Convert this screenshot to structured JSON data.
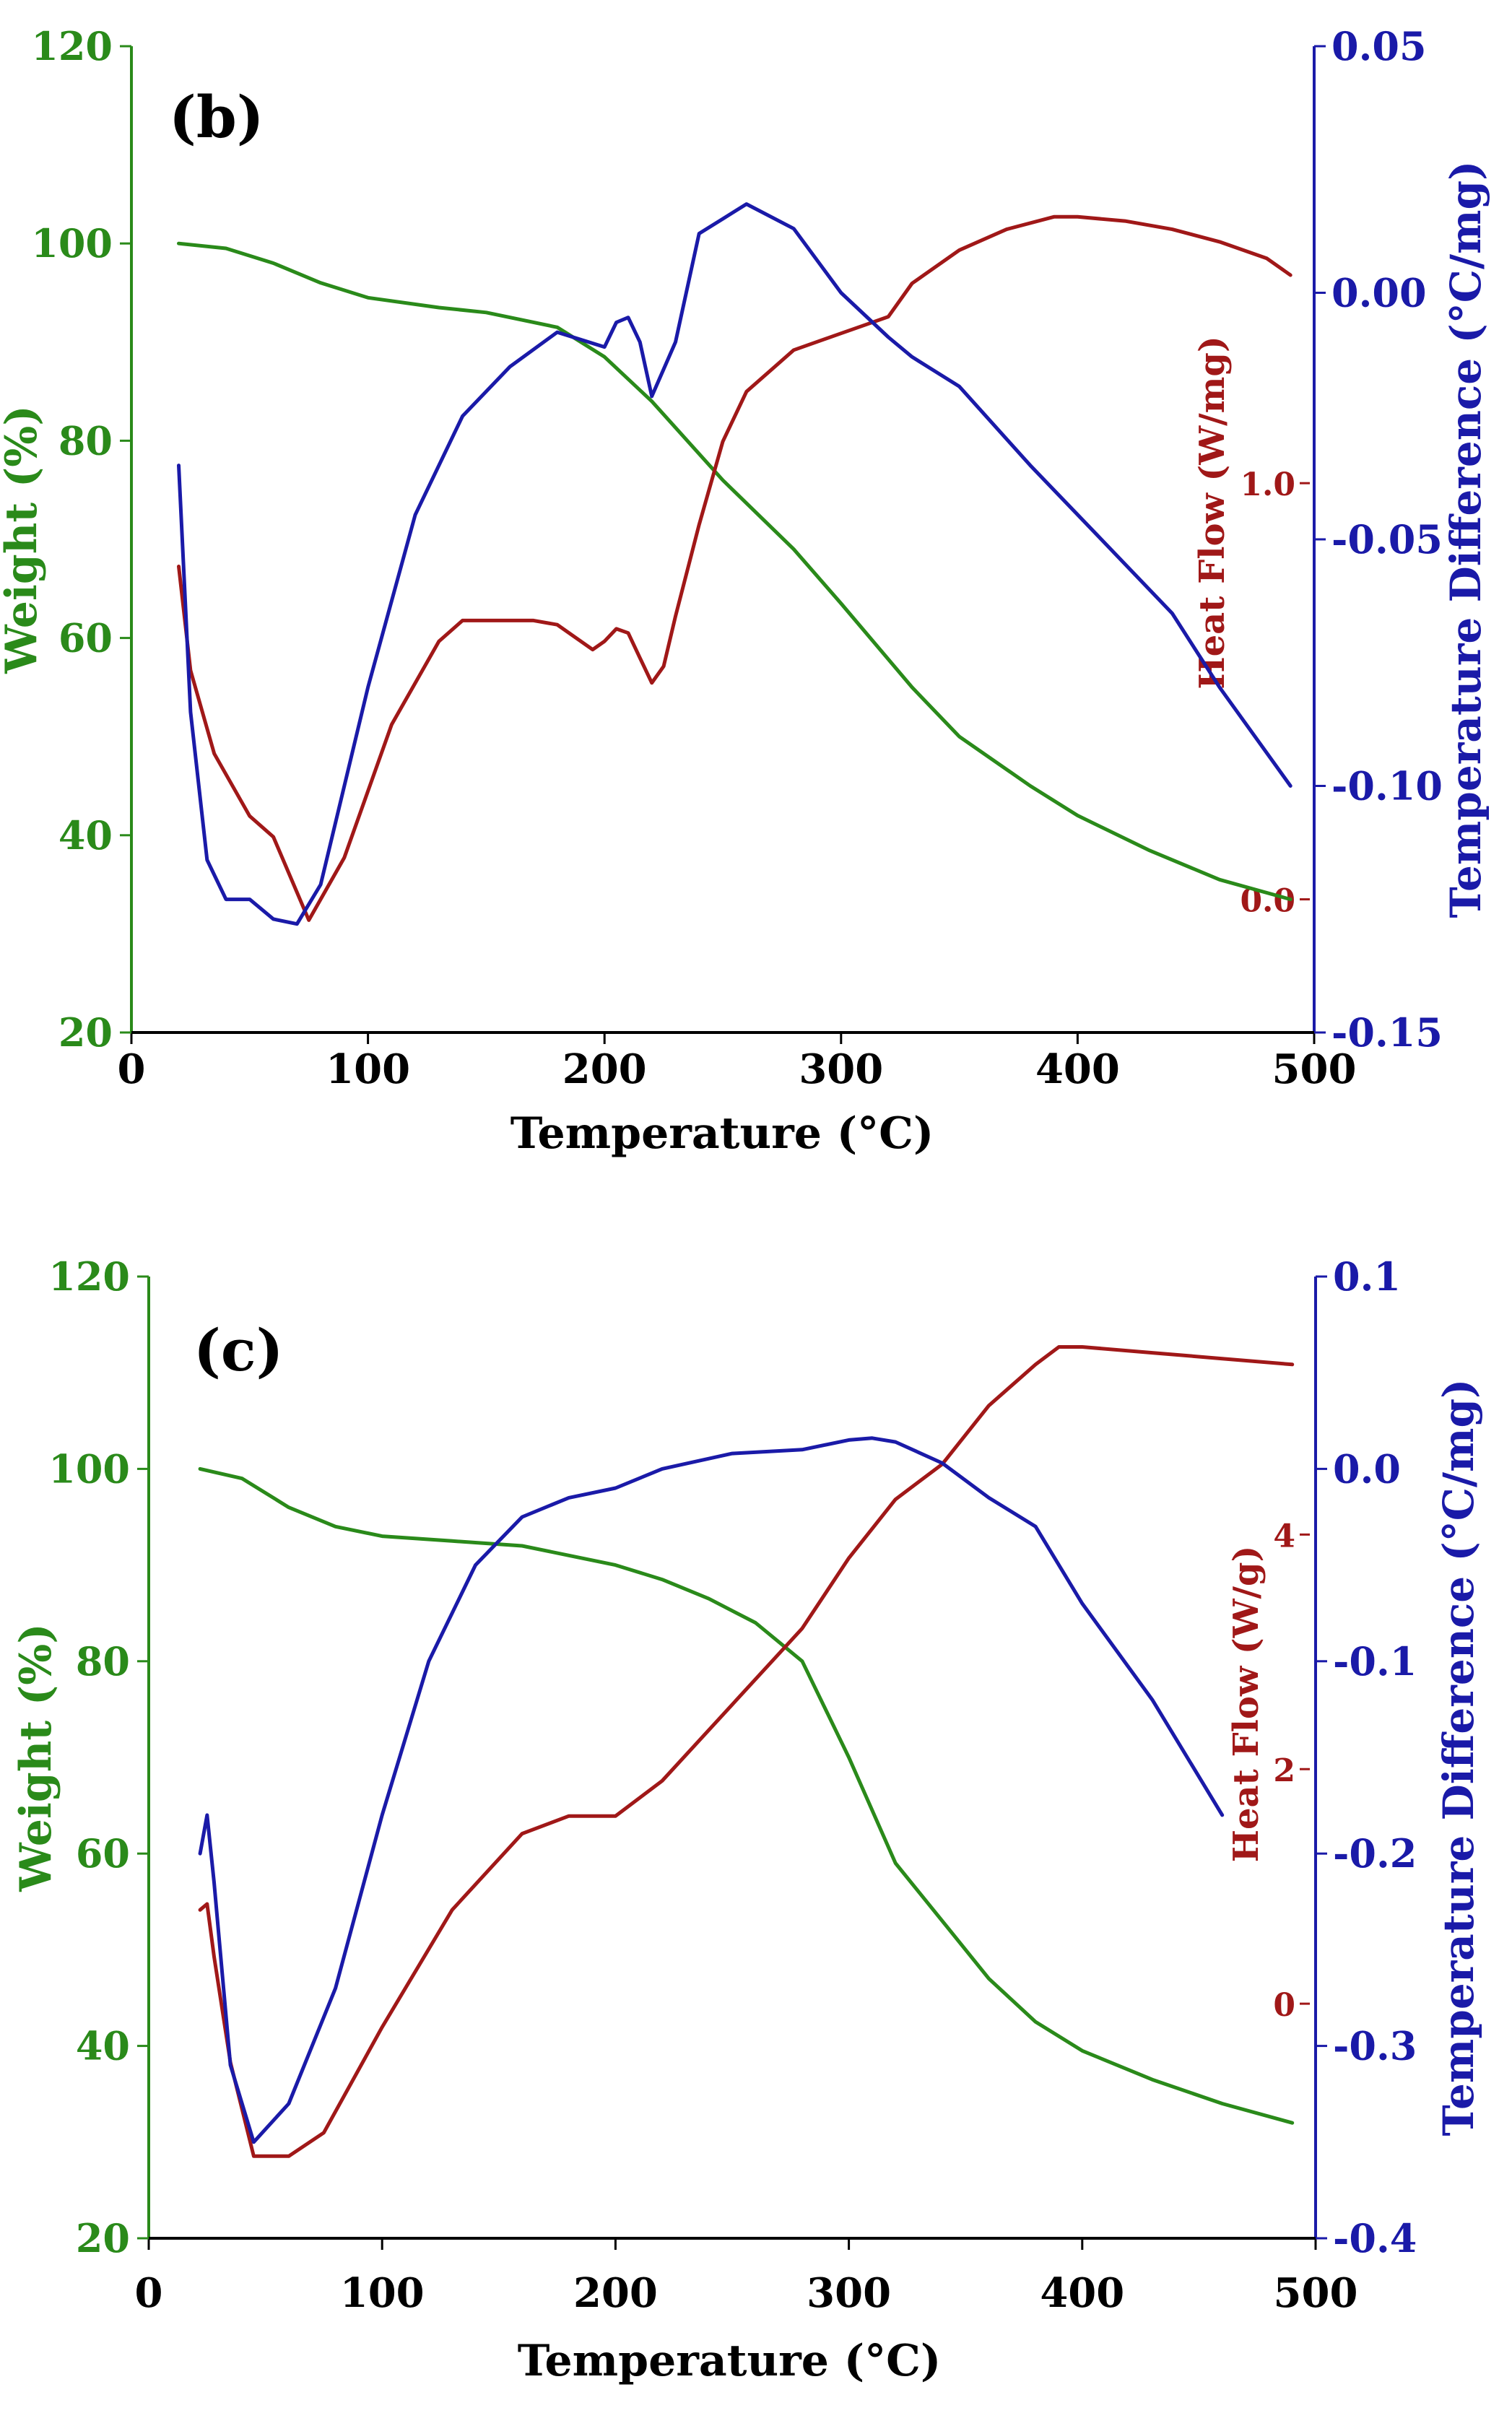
{
  "colors": {
    "weight": "#2a8a1a",
    "heat": "#a01818",
    "temp": "#1a1aa8",
    "axis": "#000000"
  },
  "chart_data": [
    {
      "type": "line",
      "panel_label": "(b)",
      "xlabel": "Temperature (°C)",
      "xlim": [
        0,
        500
      ],
      "x_ticks": [
        "0",
        "100",
        "200",
        "300",
        "400",
        "500"
      ],
      "left_axis": {
        "label": "Weight (%)",
        "lim": [
          20,
          120
        ],
        "ticks": [
          "20",
          "40",
          "60",
          "80",
          "100",
          "120"
        ]
      },
      "right_axis": {
        "label": "Temperature Difference (°C/mg)",
        "lim": [
          -0.15,
          0.05
        ],
        "ticks": [
          "-0.15",
          "-0.10",
          "-0.05",
          "0.00",
          "0.05"
        ]
      },
      "mid_axis": {
        "label": "Heat Flow (W/mg)",
        "lim": [
          -0.32,
          2.05
        ],
        "ticks": [
          "0.0",
          "1.0"
        ]
      },
      "series": [
        {
          "name": "Weight",
          "axis": "left",
          "color_key": "weight",
          "x": [
            20,
            40,
            60,
            80,
            100,
            130,
            150,
            180,
            200,
            220,
            250,
            280,
            300,
            330,
            350,
            380,
            400,
            430,
            460,
            490
          ],
          "y": [
            100,
            99.5,
            98,
            96,
            94.5,
            93.5,
            93,
            91.5,
            88.5,
            84,
            76,
            69,
            63.5,
            55,
            50,
            45,
            42,
            38.5,
            35.5,
            33.5
          ]
        },
        {
          "name": "Heat Flow",
          "axis": "mid",
          "color_key": "heat",
          "x": [
            20,
            25,
            35,
            50,
            60,
            75,
            90,
            110,
            130,
            140,
            150,
            170,
            180,
            195,
            200,
            205,
            210,
            215,
            220,
            225,
            230,
            240,
            250,
            260,
            280,
            300,
            310,
            320,
            330,
            350,
            370,
            390,
            400,
            420,
            440,
            460,
            480,
            490
          ],
          "y": [
            0.8,
            0.55,
            0.35,
            0.2,
            0.15,
            -0.05,
            0.1,
            0.42,
            0.62,
            0.67,
            0.67,
            0.67,
            0.66,
            0.6,
            0.62,
            0.65,
            0.64,
            0.58,
            0.52,
            0.56,
            0.68,
            0.9,
            1.1,
            1.22,
            1.32,
            1.36,
            1.38,
            1.4,
            1.48,
            1.56,
            1.61,
            1.64,
            1.64,
            1.63,
            1.61,
            1.58,
            1.54,
            1.5
          ]
        },
        {
          "name": "Temperature Difference",
          "axis": "right",
          "color_key": "temp",
          "x": [
            20,
            25,
            32,
            40,
            50,
            60,
            70,
            80,
            100,
            120,
            140,
            160,
            180,
            200,
            205,
            210,
            215,
            220,
            230,
            240,
            250,
            260,
            280,
            300,
            320,
            330,
            350,
            380,
            410,
            440,
            460,
            490
          ],
          "y": [
            -0.035,
            -0.085,
            -0.115,
            -0.123,
            -0.123,
            -0.127,
            -0.128,
            -0.12,
            -0.08,
            -0.045,
            -0.025,
            -0.015,
            -0.008,
            -0.011,
            -0.006,
            -0.005,
            -0.01,
            -0.021,
            -0.01,
            0.012,
            0.015,
            0.018,
            0.013,
            0.0,
            -0.009,
            -0.013,
            -0.019,
            -0.035,
            -0.05,
            -0.065,
            -0.08,
            -0.1
          ]
        }
      ]
    },
    {
      "type": "line",
      "panel_label": "(c)",
      "xlabel": "Temperature (°C)",
      "xlim": [
        0,
        500
      ],
      "x_ticks": [
        "0",
        "100",
        "200",
        "300",
        "400",
        "500"
      ],
      "left_axis": {
        "label": "Weight (%)",
        "lim": [
          20,
          120
        ],
        "ticks": [
          "20",
          "40",
          "60",
          "80",
          "100",
          "120"
        ]
      },
      "right_axis": {
        "label": "Temperature Difference (°C/mg)",
        "lim": [
          -0.4,
          0.1
        ],
        "ticks": [
          "-0.4",
          "-0.3",
          "-0.2",
          "-0.1",
          "0.0",
          "0.1"
        ]
      },
      "mid_axis": {
        "label": "Heat Flow (W/g)",
        "lim": [
          -2,
          6.2
        ],
        "ticks": [
          "0",
          "2",
          "4"
        ]
      },
      "series": [
        {
          "name": "Weight",
          "axis": "left",
          "color_key": "weight",
          "x": [
            22,
            40,
            60,
            80,
            100,
            130,
            160,
            180,
            200,
            220,
            240,
            260,
            280,
            300,
            320,
            340,
            360,
            380,
            400,
            430,
            460,
            490
          ],
          "y": [
            100,
            99,
            96,
            94,
            93,
            92.5,
            92,
            91,
            90,
            88.5,
            86.5,
            84,
            80,
            70,
            59,
            53,
            47,
            42.5,
            39.5,
            36.5,
            34,
            32
          ]
        },
        {
          "name": "Heat Flow",
          "axis": "mid",
          "color_key": "heat",
          "x": [
            22,
            25,
            28,
            35,
            45,
            60,
            75,
            100,
            130,
            160,
            180,
            200,
            220,
            250,
            280,
            300,
            320,
            340,
            360,
            380,
            390,
            400,
            430,
            460,
            490
          ],
          "y": [
            0.8,
            0.85,
            0.4,
            -0.5,
            -1.3,
            -1.3,
            -1.1,
            -0.2,
            0.8,
            1.45,
            1.6,
            1.6,
            1.9,
            2.55,
            3.2,
            3.8,
            4.3,
            4.6,
            5.1,
            5.45,
            5.6,
            5.6,
            5.55,
            5.5,
            5.45
          ]
        },
        {
          "name": "Temperature Difference",
          "axis": "right",
          "color_key": "temp",
          "x": [
            22,
            25,
            28,
            35,
            45,
            60,
            80,
            100,
            120,
            140,
            160,
            180,
            200,
            220,
            250,
            280,
            300,
            310,
            320,
            340,
            360,
            380,
            400,
            430,
            460
          ],
          "y": [
            -0.2,
            -0.18,
            -0.215,
            -0.31,
            -0.35,
            -0.33,
            -0.27,
            -0.18,
            -0.1,
            -0.05,
            -0.025,
            -0.015,
            -0.01,
            0.0,
            0.008,
            0.01,
            0.015,
            0.016,
            0.014,
            0.003,
            -0.015,
            -0.03,
            -0.07,
            -0.12,
            -0.18
          ]
        }
      ]
    }
  ]
}
